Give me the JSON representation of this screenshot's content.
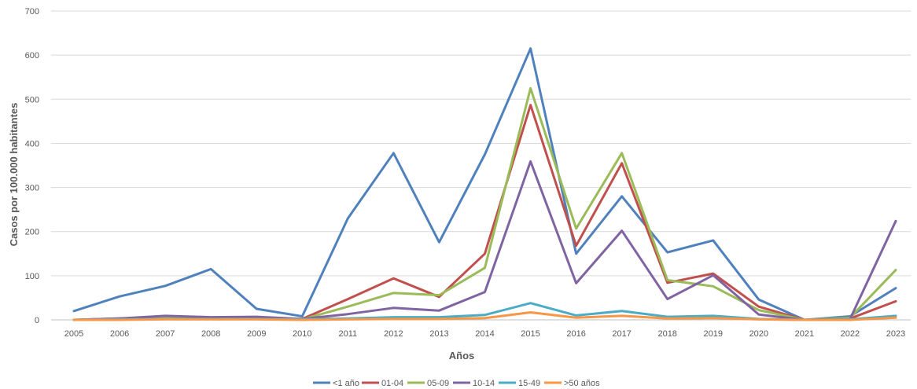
{
  "chart_data": {
    "type": "line",
    "xlabel": "Años",
    "ylabel": "Casos por 100.000 habitantes",
    "ylim": [
      0,
      700
    ],
    "yticks": [
      0,
      100,
      200,
      300,
      400,
      500,
      600,
      700
    ],
    "grid": true,
    "legend_position": "bottom",
    "categories": [
      "2005",
      "2006",
      "2007",
      "2008",
      "2009",
      "2010",
      "2011",
      "2012",
      "2013",
      "2014",
      "2015",
      "2016",
      "2017",
      "2018",
      "2019",
      "2020",
      "2021",
      "2022",
      "2023"
    ],
    "series": [
      {
        "name": "<1 año",
        "color": "#4f81bd",
        "values": [
          20,
          53,
          77,
          115,
          25,
          8,
          230,
          378,
          176,
          375,
          615,
          150,
          280,
          153,
          180,
          46,
          0,
          8,
          72
        ]
      },
      {
        "name": "01-04",
        "color": "#c0504d",
        "values": [
          0,
          3,
          5,
          5,
          5,
          2,
          47,
          94,
          52,
          150,
          487,
          168,
          355,
          84,
          105,
          30,
          0,
          3,
          42
        ]
      },
      {
        "name": "05-09",
        "color": "#9bbb59",
        "values": [
          0,
          2,
          4,
          4,
          4,
          1,
          30,
          61,
          56,
          118,
          525,
          207,
          378,
          90,
          76,
          22,
          0,
          5,
          113
        ]
      },
      {
        "name": "10-14",
        "color": "#8064a2",
        "values": [
          0,
          3,
          9,
          6,
          7,
          2,
          13,
          27,
          21,
          63,
          359,
          83,
          202,
          47,
          101,
          12,
          0,
          2,
          224
        ]
      },
      {
        "name": "15-49",
        "color": "#4bacc6",
        "values": [
          0,
          1,
          2,
          2,
          2,
          1,
          3,
          6,
          6,
          11,
          38,
          10,
          20,
          7,
          9,
          2,
          0,
          1,
          9
        ]
      },
      {
        "name": ">50 años",
        "color": "#f79646",
        "values": [
          0,
          0,
          1,
          1,
          1,
          0,
          1,
          2,
          2,
          4,
          17,
          5,
          9,
          3,
          4,
          1,
          0,
          0,
          5
        ]
      }
    ]
  }
}
